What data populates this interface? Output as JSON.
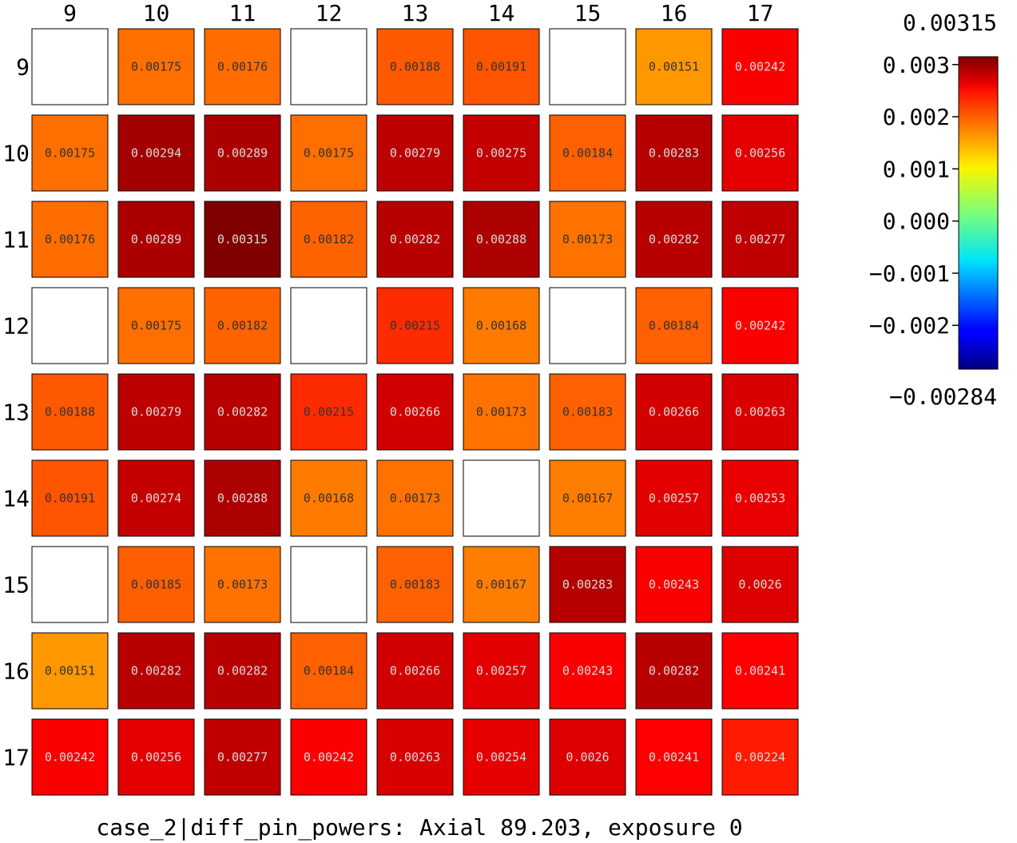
{
  "chart_data": {
    "type": "heatmap",
    "title": "case_2|diff_pin_powers: Axial 89.203, exposure 0",
    "x_labels": [
      "9",
      "10",
      "11",
      "12",
      "13",
      "14",
      "15",
      "16",
      "17"
    ],
    "y_labels": [
      "9",
      "10",
      "11",
      "12",
      "13",
      "14",
      "15",
      "16",
      "17"
    ],
    "values": [
      [
        null,
        0.00175,
        0.00176,
        null,
        0.00188,
        0.00191,
        null,
        0.00151,
        0.00242
      ],
      [
        0.00175,
        0.00294,
        0.00289,
        0.00175,
        0.00279,
        0.00275,
        0.00184,
        0.00283,
        0.00256
      ],
      [
        0.00176,
        0.00289,
        0.00315,
        0.00182,
        0.00282,
        0.00288,
        0.00173,
        0.00282,
        0.00277
      ],
      [
        null,
        0.00175,
        0.00182,
        null,
        0.00215,
        0.00168,
        null,
        0.00184,
        0.00242
      ],
      [
        0.00188,
        0.00279,
        0.00282,
        0.00215,
        0.00266,
        0.00173,
        0.00183,
        0.00266,
        0.00263
      ],
      [
        0.00191,
        0.00274,
        0.00288,
        0.00168,
        0.00173,
        null,
        0.00167,
        0.00257,
        0.00253
      ],
      [
        null,
        0.00185,
        0.00173,
        null,
        0.00183,
        0.00167,
        0.00283,
        0.00243,
        0.0026
      ],
      [
        0.00151,
        0.00282,
        0.00282,
        0.00184,
        0.00266,
        0.00257,
        0.00243,
        0.00282,
        0.00241
      ],
      [
        0.00242,
        0.00256,
        0.00277,
        0.00242,
        0.00263,
        0.00254,
        0.0026,
        0.00241,
        0.00224
      ]
    ],
    "value_labels": [
      [
        "",
        "0.00175",
        "0.00176",
        "",
        "0.00188",
        "0.00191",
        "",
        "0.00151",
        "0.00242"
      ],
      [
        "0.00175",
        "0.00294",
        "0.00289",
        "0.00175",
        "0.00279",
        "0.00275",
        "0.00184",
        "0.00283",
        "0.00256"
      ],
      [
        "0.00176",
        "0.00289",
        "0.00315",
        "0.00182",
        "0.00282",
        "0.00288",
        "0.00173",
        "0.00282",
        "0.00277"
      ],
      [
        "",
        "0.00175",
        "0.00182",
        "",
        "0.00215",
        "0.00168",
        "",
        "0.00184",
        "0.00242"
      ],
      [
        "0.00188",
        "0.00279",
        "0.00282",
        "0.00215",
        "0.00266",
        "0.00173",
        "0.00183",
        "0.00266",
        "0.00263"
      ],
      [
        "0.00191",
        "0.00274",
        "0.00288",
        "0.00168",
        "0.00173",
        "",
        "0.00167",
        "0.00257",
        "0.00253"
      ],
      [
        "",
        "0.00185",
        "0.00173",
        "",
        "0.00183",
        "0.00167",
        "0.00283",
        "0.00243",
        "0.0026"
      ],
      [
        "0.00151",
        "0.00282",
        "0.00282",
        "0.00184",
        "0.00266",
        "0.00257",
        "0.00243",
        "0.00282",
        "0.00241"
      ],
      [
        "0.00242",
        "0.00256",
        "0.00277",
        "0.00242",
        "0.00263",
        "0.00254",
        "0.0026",
        "0.00241",
        "0.00224"
      ]
    ],
    "colormap": "jet",
    "vmin": -0.00284,
    "vmax": 0.00315,
    "colorbar": {
      "max_label": "0.00315",
      "min_label": "−0.00284",
      "tick_values": [
        0.003,
        0.002,
        0.001,
        0.0,
        -0.001,
        -0.002
      ],
      "tick_labels": [
        "0.003",
        "0.002",
        "0.001",
        "0.000",
        "−0.001",
        "−0.002"
      ],
      "position": "right"
    }
  }
}
